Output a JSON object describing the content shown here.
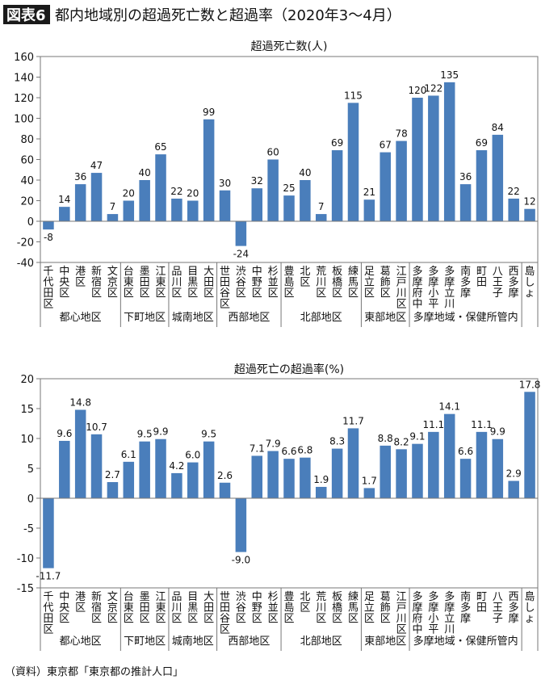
{
  "figure": {
    "badge": "図表6",
    "title": "都内地域別の超過死亡数と超過率（2020年3～4月）",
    "source": "（資料）東京都「東京都の推計人口」"
  },
  "colors": {
    "bar": "#4a7ebb",
    "badge_bg": "#1a1a1a"
  },
  "chart_data": [
    {
      "type": "bar",
      "title": "超過死亡数(人)",
      "ylim": [
        -40,
        160
      ],
      "yticks": [
        -40,
        -20,
        0,
        20,
        40,
        60,
        80,
        100,
        120,
        140,
        160
      ],
      "grid": false,
      "categories": [
        "千代田区",
        "中央区",
        "港区",
        "新宿区",
        "文京区",
        "台東区",
        "墨田区",
        "江東区",
        "品川区",
        "目黒区",
        "大田区",
        "世田谷区",
        "渋谷区",
        "中野区",
        "杉並区",
        "豊島区",
        "北区",
        "荒川区",
        "板橋区",
        "練馬区",
        "足立区",
        "葛飾区",
        "江戸川区",
        "多摩府中",
        "多摩小平",
        "多摩立川",
        "南多摩",
        "町田",
        "八王子",
        "西多摩",
        "島しょ"
      ],
      "values": [
        -8,
        14,
        36,
        47,
        7,
        20,
        40,
        65,
        22,
        20,
        99,
        30,
        -24,
        32,
        60,
        25,
        40,
        7,
        69,
        115,
        21,
        67,
        78,
        120,
        122,
        135,
        36,
        69,
        84,
        22,
        12
      ],
      "value_labels": [
        "-8",
        "14",
        "36",
        "47",
        "7",
        "20",
        "40",
        "65",
        "22",
        "20",
        "99",
        "30",
        "-24",
        "32",
        "60",
        "25",
        "40",
        "7",
        "69",
        "115",
        "21",
        "67",
        "78",
        "120",
        "122",
        "135",
        "36",
        "69",
        "84",
        "22",
        "12"
      ],
      "groups": [
        {
          "label": "都心地区",
          "start": 0,
          "end": 4
        },
        {
          "label": "下町地区",
          "start": 5,
          "end": 7
        },
        {
          "label": "城南地区",
          "start": 8,
          "end": 10
        },
        {
          "label": "西部地区",
          "start": 11,
          "end": 14
        },
        {
          "label": "北部地区",
          "start": 15,
          "end": 19
        },
        {
          "label": "東部地区",
          "start": 20,
          "end": 22
        },
        {
          "label": "多摩地域・保健所管内",
          "start": 23,
          "end": 29
        },
        {
          "label": "",
          "start": 30,
          "end": 30
        }
      ]
    },
    {
      "type": "bar",
      "title": "超過死亡の超過率(%)",
      "ylim": [
        -15,
        20
      ],
      "yticks": [
        -15,
        -10,
        -5,
        0,
        5,
        10,
        15,
        20
      ],
      "grid": false,
      "categories": [
        "千代田区",
        "中央区",
        "港区",
        "新宿区",
        "文京区",
        "台東区",
        "墨田区",
        "江東区",
        "品川区",
        "目黒区",
        "大田区",
        "世田谷区",
        "渋谷区",
        "中野区",
        "杉並区",
        "豊島区",
        "北区",
        "荒川区",
        "板橋区",
        "練馬区",
        "足立区",
        "葛飾区",
        "江戸川区",
        "多摩府中",
        "多摩小平",
        "多摩立川",
        "南多摩",
        "町田",
        "八王子",
        "西多摩",
        "島しょ"
      ],
      "values": [
        -11.7,
        9.6,
        14.8,
        10.7,
        2.7,
        6.1,
        9.5,
        9.9,
        4.2,
        6.0,
        9.5,
        2.6,
        -9.0,
        7.1,
        7.9,
        6.6,
        6.8,
        1.9,
        8.3,
        11.7,
        1.7,
        8.8,
        8.2,
        9.1,
        11.1,
        14.1,
        6.6,
        11.1,
        9.9,
        2.9,
        17.8
      ],
      "value_labels": [
        "-11.7",
        "9.6",
        "14.8",
        "10.7",
        "2.7",
        "6.1",
        "9.5",
        "9.9",
        "4.2",
        "6.0",
        "9.5",
        "2.6",
        "-9.0",
        "7.1",
        "7.9",
        "6.6",
        "6.8",
        "1.9",
        "8.3",
        "11.7",
        "1.7",
        "8.8",
        "8.2",
        "9.1",
        "11.1",
        "14.1",
        "6.6",
        "11.1",
        "9.9",
        "2.9",
        "17.8"
      ],
      "groups": [
        {
          "label": "都心地区",
          "start": 0,
          "end": 4
        },
        {
          "label": "下町地区",
          "start": 5,
          "end": 7
        },
        {
          "label": "城南地区",
          "start": 8,
          "end": 10
        },
        {
          "label": "西部地区",
          "start": 11,
          "end": 14
        },
        {
          "label": "北部地区",
          "start": 15,
          "end": 19
        },
        {
          "label": "東部地区",
          "start": 20,
          "end": 22
        },
        {
          "label": "多摩地域・保健所管内",
          "start": 23,
          "end": 29
        },
        {
          "label": "",
          "start": 30,
          "end": 30
        }
      ]
    }
  ]
}
